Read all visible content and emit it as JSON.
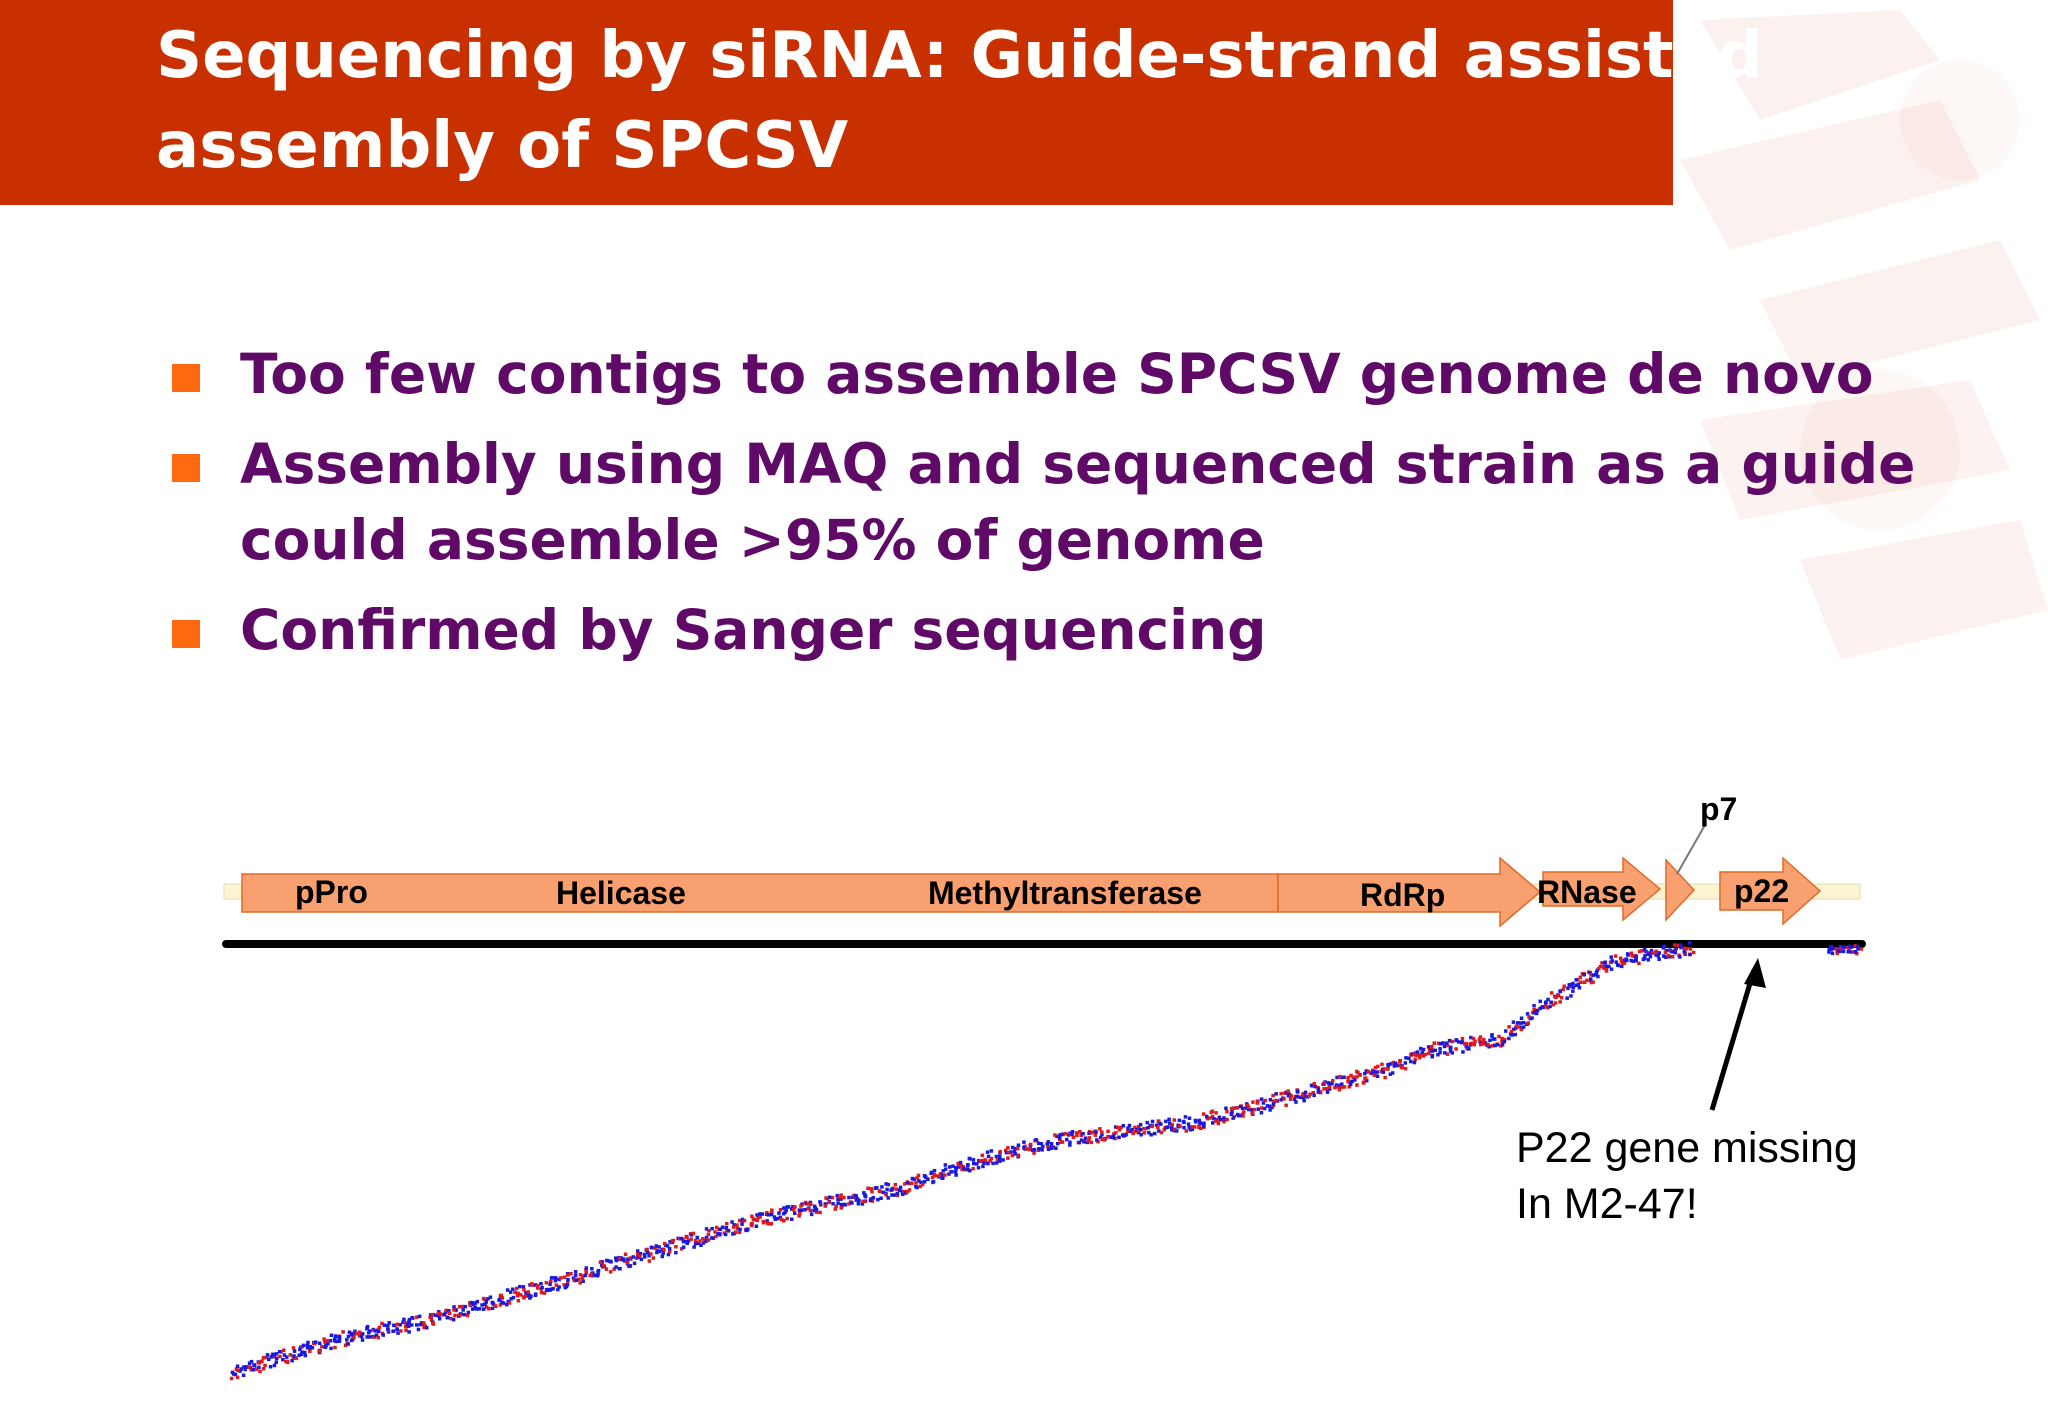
{
  "title": {
    "line1": "Sequencing by siRNA: Guide-strand assisted",
    "line2": "assembly of SPCSV"
  },
  "bullets": [
    {
      "lines": [
        "Too few contigs to assemble SPCSV genome de novo"
      ]
    },
    {
      "lines": [
        "Assembly using MAQ and sequenced strain as a guide",
        "could assemble >95% of genome"
      ]
    },
    {
      "lines": [
        "Confirmed by Sanger sequencing"
      ]
    }
  ],
  "diagram": {
    "genes": [
      {
        "label": "pPro"
      },
      {
        "label": "Helicase"
      },
      {
        "label": "Methyltransferase"
      },
      {
        "label": "RdRp"
      },
      {
        "label": "RNase"
      },
      {
        "label": "p7"
      },
      {
        "label": "p22"
      }
    ],
    "annotation": {
      "line1": "P22 gene missing",
      "line2": "In M2-47!"
    }
  },
  "colors": {
    "title_bar": "#c93000",
    "title_text": "#ffffff",
    "bullet_square": "#ff6a10",
    "bullet_text": "#5e0a66",
    "gene_fill": "#f9a070",
    "read_forward": "#1a1adf",
    "read_reverse": "#e01a1a"
  }
}
